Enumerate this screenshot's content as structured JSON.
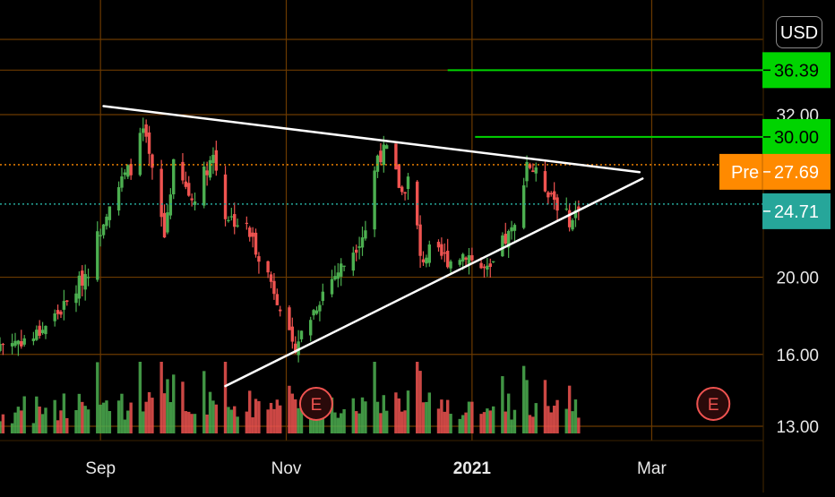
{
  "currency": "USD",
  "price_tags": [
    {
      "value": "36.39",
      "bg": "#00d400",
      "fg": "#000000"
    },
    {
      "value": "30.00",
      "bg": "#00d400",
      "fg": "#000000"
    },
    {
      "value": "27.69",
      "prefix": "Pre",
      "bg": "#ff8a00",
      "fg": "#ffffff"
    },
    {
      "value": "24.71",
      "bg": "#26a69a",
      "fg": "#ffffff"
    }
  ],
  "earnings_marker": "E",
  "colors": {
    "up": "#4caf50",
    "down": "#ef5350",
    "grid": "#6b3a00",
    "trendline": "#ffffff",
    "target_line": "#00d400",
    "premarket_line": "#ff8a00",
    "last_line": "#26a69a"
  },
  "chart_data": {
    "type": "candlestick",
    "y_scale": "log",
    "ylim": [
      12.8,
      44
    ],
    "y_ticks": [
      {
        "label": "13.00",
        "value": 13
      },
      {
        "label": "16.00",
        "value": 16
      },
      {
        "label": "20.00",
        "value": 20
      },
      {
        "label": "32.00",
        "value": 32
      }
    ],
    "x_ticks": [
      {
        "label": "Sep",
        "date": "2020-09-01"
      },
      {
        "label": "Nov",
        "date": "2020-11-01"
      },
      {
        "label": "2021",
        "date": "2021-01-01",
        "bold": true
      },
      {
        "label": "Mar",
        "date": "2021-03-01"
      }
    ],
    "last_price": 24.71,
    "premarket_price": 27.69,
    "target_levels": [
      30.0,
      36.39
    ],
    "earnings_dates": [
      "2020-11-02",
      "2021-03-03"
    ],
    "trendlines": [
      {
        "from": {
          "date": "2020-09-02",
          "price": 32.8
        },
        "to": {
          "date": "2021-02-25",
          "price": 27.1
        }
      },
      {
        "from": {
          "date": "2020-10-12",
          "price": 14.6
        },
        "to": {
          "date": "2021-02-26",
          "price": 26.6
        }
      }
    ],
    "price_waypoints": [
      {
        "date": "2020-07-30",
        "price": 16.5
      },
      {
        "date": "2020-08-10",
        "price": 16.8
      },
      {
        "date": "2020-08-21",
        "price": 18.5
      },
      {
        "date": "2020-08-28",
        "price": 20.5
      },
      {
        "date": "2020-09-04",
        "price": 25.0
      },
      {
        "date": "2020-09-11",
        "price": 27.5
      },
      {
        "date": "2020-09-15",
        "price": 30.5
      },
      {
        "date": "2020-09-18",
        "price": 27.0
      },
      {
        "date": "2020-09-22",
        "price": 22.5
      },
      {
        "date": "2020-09-25",
        "price": 27.5
      },
      {
        "date": "2020-10-01",
        "price": 25.0
      },
      {
        "date": "2020-10-06",
        "price": 27.5
      },
      {
        "date": "2020-10-08",
        "price": 28.5
      },
      {
        "date": "2020-10-12",
        "price": 24.0
      },
      {
        "date": "2020-10-19",
        "price": 23.0
      },
      {
        "date": "2020-10-24",
        "price": 21.0
      },
      {
        "date": "2020-10-30",
        "price": 18.5
      },
      {
        "date": "2020-11-03",
        "price": 16.2
      },
      {
        "date": "2020-11-08",
        "price": 17.5
      },
      {
        "date": "2020-11-14",
        "price": 19.5
      },
      {
        "date": "2020-11-21",
        "price": 21.0
      },
      {
        "date": "2020-11-27",
        "price": 23.0
      },
      {
        "date": "2020-12-01",
        "price": 28.5
      },
      {
        "date": "2020-12-04",
        "price": 28.8
      },
      {
        "date": "2020-12-09",
        "price": 25.5
      },
      {
        "date": "2020-12-12",
        "price": 27.0
      },
      {
        "date": "2020-12-15",
        "price": 21.0
      },
      {
        "date": "2020-12-18",
        "price": 21.5
      },
      {
        "date": "2020-12-25",
        "price": 21.0
      },
      {
        "date": "2020-12-30",
        "price": 21.5
      },
      {
        "date": "2021-01-04",
        "price": 20.5
      },
      {
        "date": "2021-01-07",
        "price": 20.2
      },
      {
        "date": "2021-01-10",
        "price": 21.8
      },
      {
        "date": "2021-01-15",
        "price": 23.0
      },
      {
        "date": "2021-01-19",
        "price": 28.0
      },
      {
        "date": "2021-01-23",
        "price": 26.5
      },
      {
        "date": "2021-01-27",
        "price": 25.5
      },
      {
        "date": "2021-01-31",
        "price": 24.0
      },
      {
        "date": "2021-02-03",
        "price": 23.5
      },
      {
        "date": "2021-02-05",
        "price": 24.71
      }
    ]
  }
}
